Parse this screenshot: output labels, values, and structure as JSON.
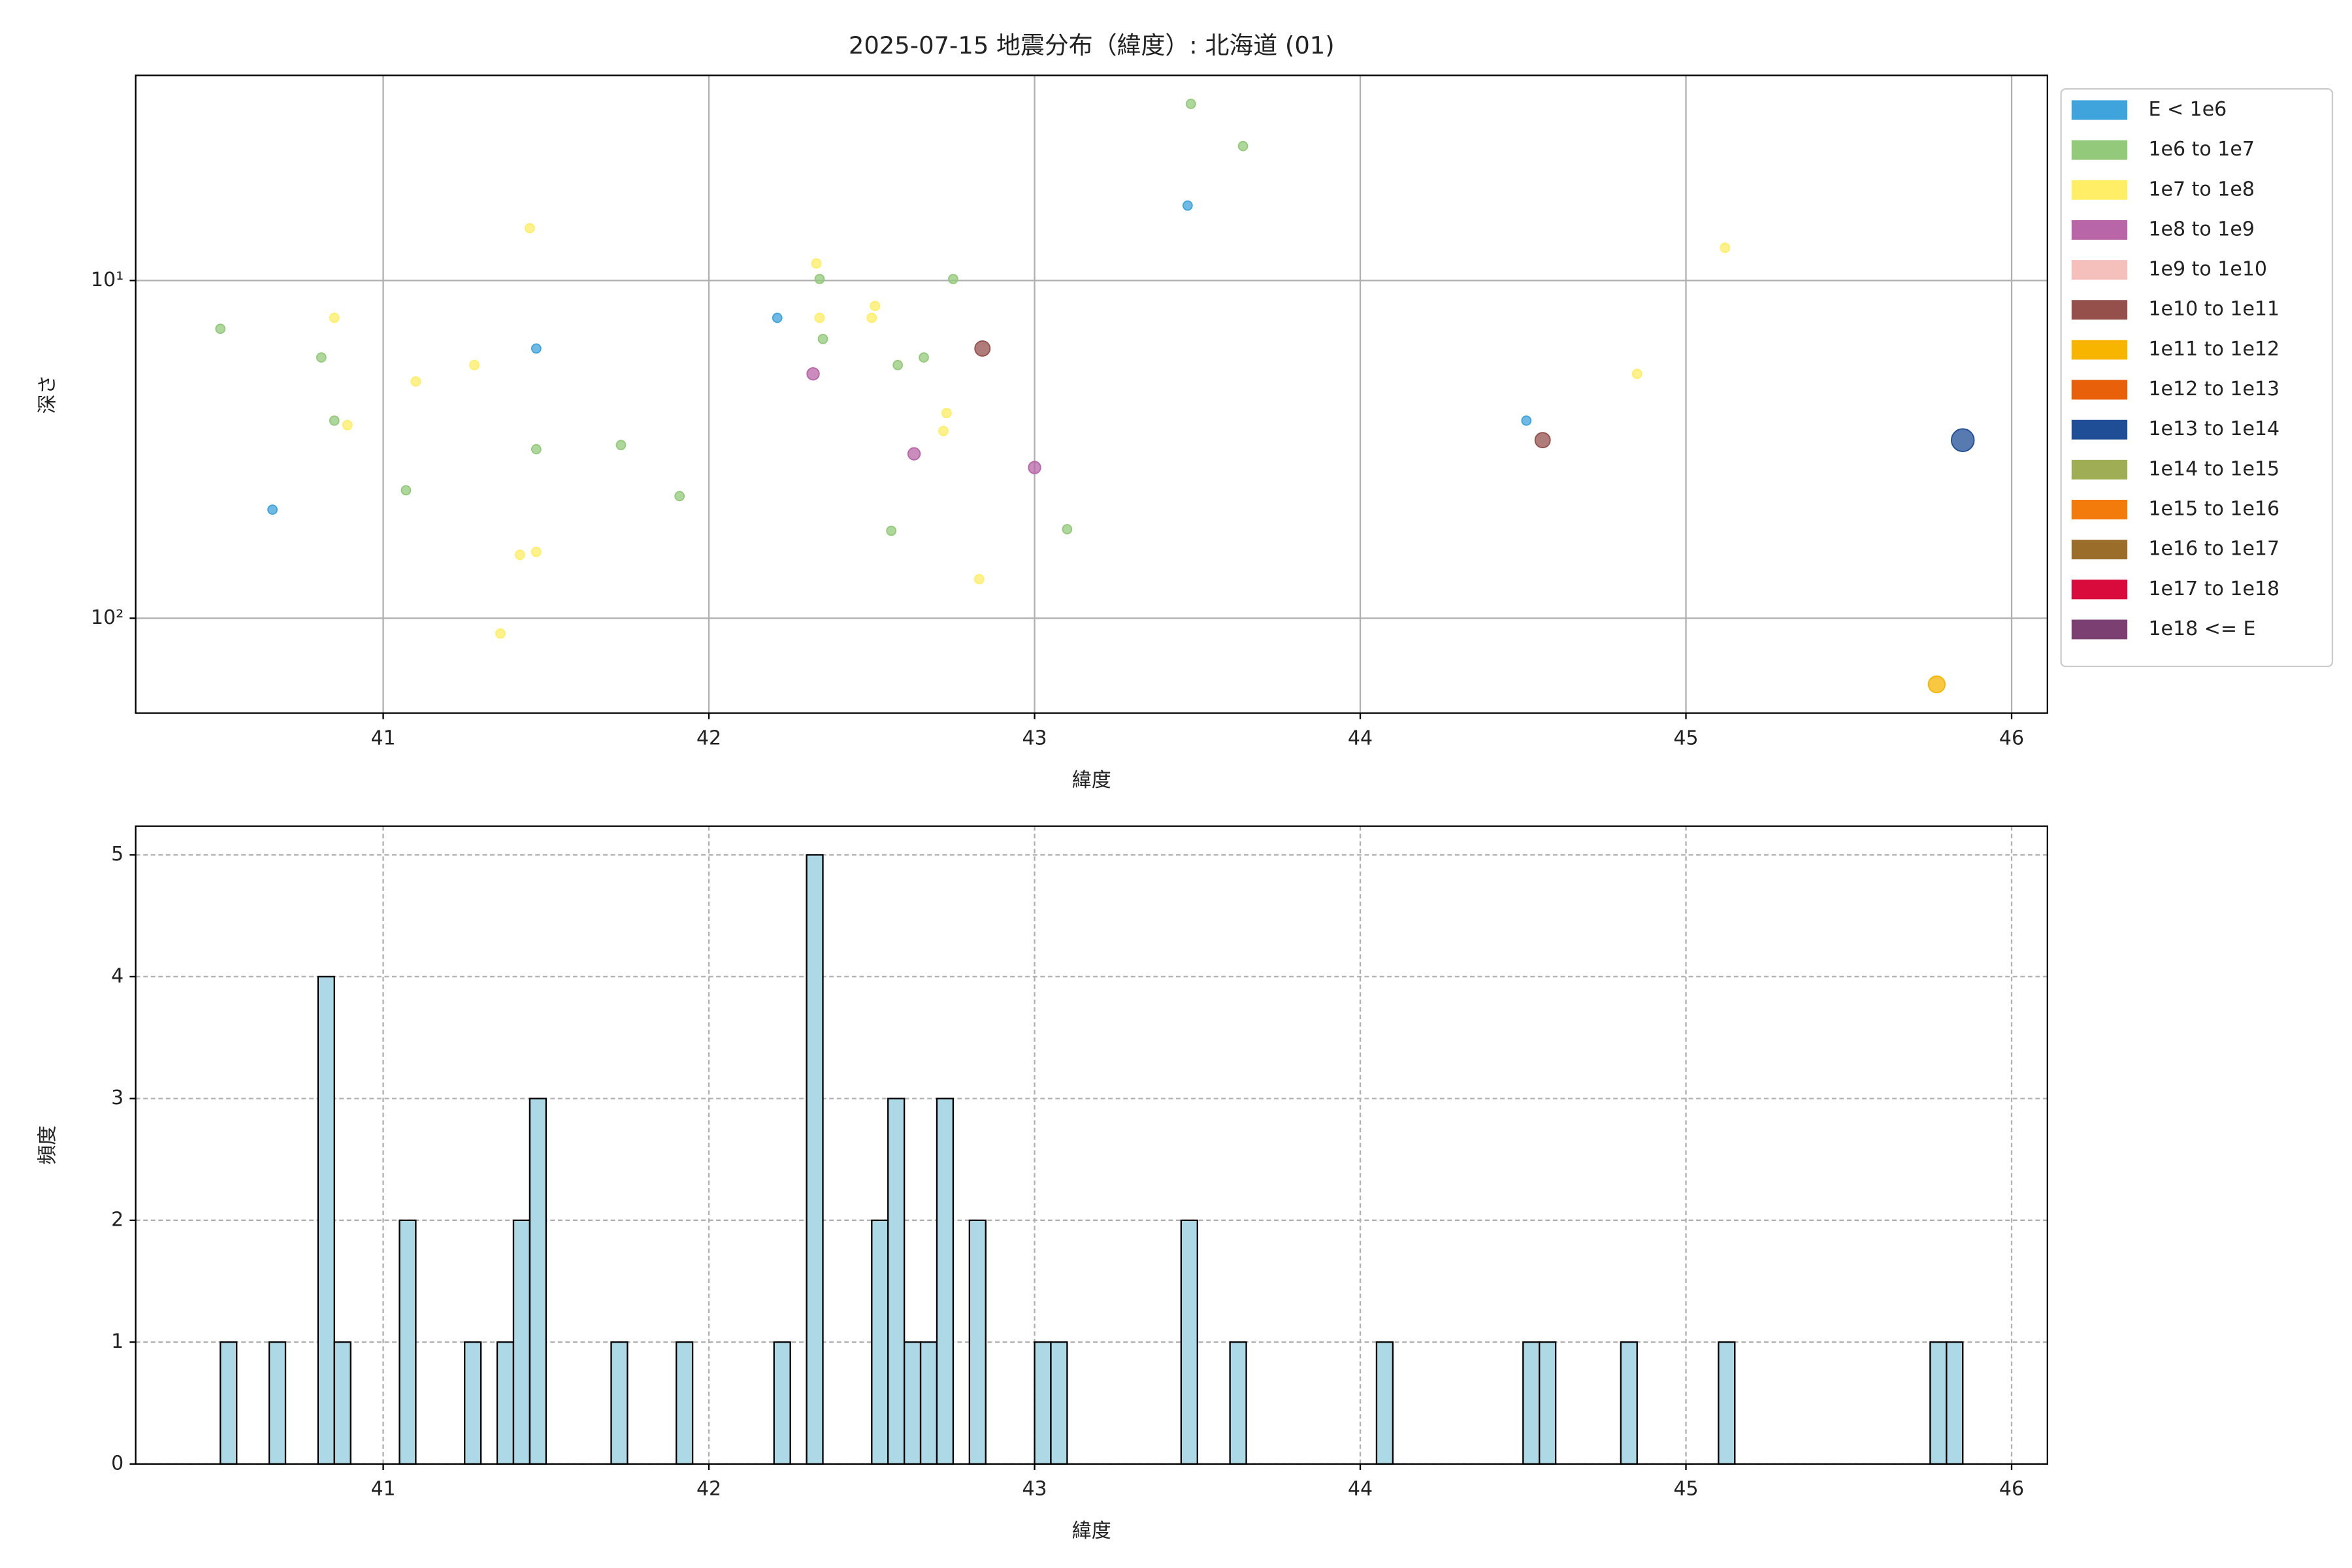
{
  "chart_data": [
    {
      "type": "scatter",
      "title": "2025-07-15 地震分布（緯度）: 北海道 (01)",
      "xlabel": "緯度",
      "ylabel": "深さ",
      "xlim": [
        40.24,
        46.11
      ],
      "xticks": [
        41,
        42,
        43,
        44,
        45,
        46
      ],
      "ylim": [
        2.47,
        191
      ],
      "y_log": true,
      "y_inverted": true,
      "yticks": [
        {
          "value": 10,
          "label": "10¹"
        },
        {
          "value": 100,
          "label": "10²"
        }
      ],
      "grid": true,
      "legend": "outside-right",
      "series": [
        {
          "name": "E < 1e6",
          "color": "#3fa3dc",
          "marker_size": 3,
          "x": [
            40.66,
            41.47,
            42.21,
            43.47,
            44.51
          ],
          "values": [
            47.7,
            15.9,
            12.9,
            6.0,
            26.0
          ]
        },
        {
          "name": "1e6 to 1e7",
          "color": "#93c97a",
          "marker_size": 3,
          "x": [
            40.5,
            40.81,
            40.85,
            41.07,
            41.47,
            41.73,
            41.91,
            42.34,
            42.35,
            42.56,
            42.58,
            42.66,
            42.75,
            43.1,
            43.48,
            43.64
          ],
          "values": [
            13.9,
            16.9,
            26.0,
            41.8,
            31.6,
            30.7,
            43.5,
            9.9,
            14.9,
            55.1,
            17.8,
            16.9,
            9.9,
            54.5,
            3.0,
            4.0
          ]
        },
        {
          "name": "1e7 to 1e8",
          "color": "#ffee66",
          "marker_size": 3,
          "x": [
            40.85,
            40.89,
            41.1,
            41.28,
            41.42,
            41.45,
            41.47,
            41.36,
            42.33,
            42.34,
            42.5,
            42.51,
            42.72,
            42.73,
            42.83,
            44.85,
            45.12
          ],
          "values": [
            12.9,
            26.8,
            19.9,
            17.8,
            64.9,
            7.0,
            63.6,
            111,
            8.9,
            12.9,
            12.9,
            11.9,
            27.9,
            24.7,
            76.6,
            18.9,
            8.0
          ]
        },
        {
          "name": "1e8 to 1e9",
          "color": "#b866a7",
          "marker_size": 4,
          "x": [
            42.32,
            42.63,
            43.0
          ],
          "values": [
            18.9,
            32.6,
            35.8
          ]
        },
        {
          "name": "1e9 to 1e10",
          "color": "#f5bfbb",
          "marker_size": 4,
          "x": [],
          "values": []
        },
        {
          "name": "1e10 to 1e11",
          "color": "#96504c",
          "marker_size": 5,
          "x": [
            42.84,
            44.56
          ],
          "values": [
            15.9,
            29.7
          ]
        },
        {
          "name": "1e11 to 1e12",
          "color": "#f7b500",
          "marker_size": 5.5,
          "x": [
            45.77
          ],
          "values": [
            157
          ]
        },
        {
          "name": "1e12 to 1e13",
          "color": "#e8600a",
          "marker_size": 6,
          "x": [],
          "values": []
        },
        {
          "name": "1e13 to 1e14",
          "color": "#1f4e96",
          "marker_size": 7.5,
          "x": [
            45.85
          ],
          "values": [
            29.7
          ]
        },
        {
          "name": "1e14 to 1e15",
          "color": "#9fae55",
          "marker_size": 8,
          "x": [],
          "values": []
        },
        {
          "name": "1e15 to 1e16",
          "color": "#f27b0c",
          "marker_size": 8,
          "x": [],
          "values": []
        },
        {
          "name": "1e16 to 1e17",
          "color": "#9a6e2a",
          "marker_size": 8,
          "x": [],
          "values": []
        },
        {
          "name": "1e17 to 1e18",
          "color": "#d80b3c",
          "marker_size": 8,
          "x": [],
          "values": []
        },
        {
          "name": "1e18 <= E",
          "color": "#7b3f72",
          "marker_size": 8,
          "x": [],
          "values": []
        }
      ]
    },
    {
      "type": "histogram",
      "xlabel": "緯度",
      "ylabel": "頻度",
      "xlim": [
        40.24,
        46.11
      ],
      "xticks": [
        41,
        42,
        43,
        44,
        45,
        46
      ],
      "ylim": [
        0,
        5.235
      ],
      "yticks": [
        0,
        1,
        2,
        3,
        4,
        5
      ],
      "grid": true,
      "color": "#add8e6",
      "bins": [
        40.5,
        40.55,
        40.6,
        40.65,
        40.7,
        40.75,
        40.8,
        40.85,
        40.9,
        40.95,
        41,
        41.05,
        41.1,
        41.15,
        41.2,
        41.25,
        41.3,
        41.35,
        41.4,
        41.45,
        41.5,
        41.55,
        41.6,
        41.65,
        41.7,
        41.75,
        41.8,
        41.85,
        41.9,
        41.95,
        42,
        42.05,
        42.1,
        42.15,
        42.2,
        42.25,
        42.3,
        42.35,
        42.4,
        42.45,
        42.5,
        42.55,
        42.6,
        42.65,
        42.7,
        42.75,
        42.8,
        42.85,
        42.9,
        42.95,
        43,
        43.05,
        43.1,
        43.15,
        43.2,
        43.25,
        43.3,
        43.35,
        43.4,
        43.45,
        43.5,
        43.55,
        43.6,
        43.65,
        43.7,
        43.75,
        43.8,
        43.85,
        43.9,
        43.95,
        44,
        44.05,
        44.1,
        44.15,
        44.2,
        44.25,
        44.3,
        44.35,
        44.4,
        44.45,
        44.5,
        44.55,
        44.6,
        44.65,
        44.7,
        44.75,
        44.8,
        44.85,
        44.9,
        44.95,
        45,
        45.05,
        45.1,
        45.15,
        45.2,
        45.25,
        45.3,
        45.35,
        45.4,
        45.45,
        45.5,
        45.55,
        45.6,
        45.65,
        45.7,
        45.75,
        45.8,
        45.85
      ],
      "values": [
        1,
        0,
        0,
        1,
        0,
        0,
        4,
        1,
        0,
        0,
        0,
        2,
        0,
        0,
        0,
        1,
        0,
        1,
        2,
        3,
        0,
        0,
        0,
        0,
        1,
        0,
        0,
        0,
        1,
        0,
        0,
        0,
        0,
        0,
        1,
        0,
        5,
        0,
        0,
        0,
        2,
        3,
        1,
        1,
        3,
        0,
        2,
        0,
        0,
        0,
        1,
        1,
        0,
        0,
        0,
        0,
        0,
        0,
        0,
        2,
        0,
        0,
        1,
        0,
        0,
        0,
        0,
        0,
        0,
        0,
        0,
        1,
        0,
        0,
        0,
        0,
        0,
        0,
        0,
        0,
        1,
        1,
        0,
        0,
        0,
        0,
        1,
        0,
        0,
        0,
        0,
        0,
        1,
        0,
        0,
        0,
        0,
        0,
        0,
        0,
        0,
        0,
        0,
        0,
        0,
        1,
        1
      ]
    }
  ]
}
